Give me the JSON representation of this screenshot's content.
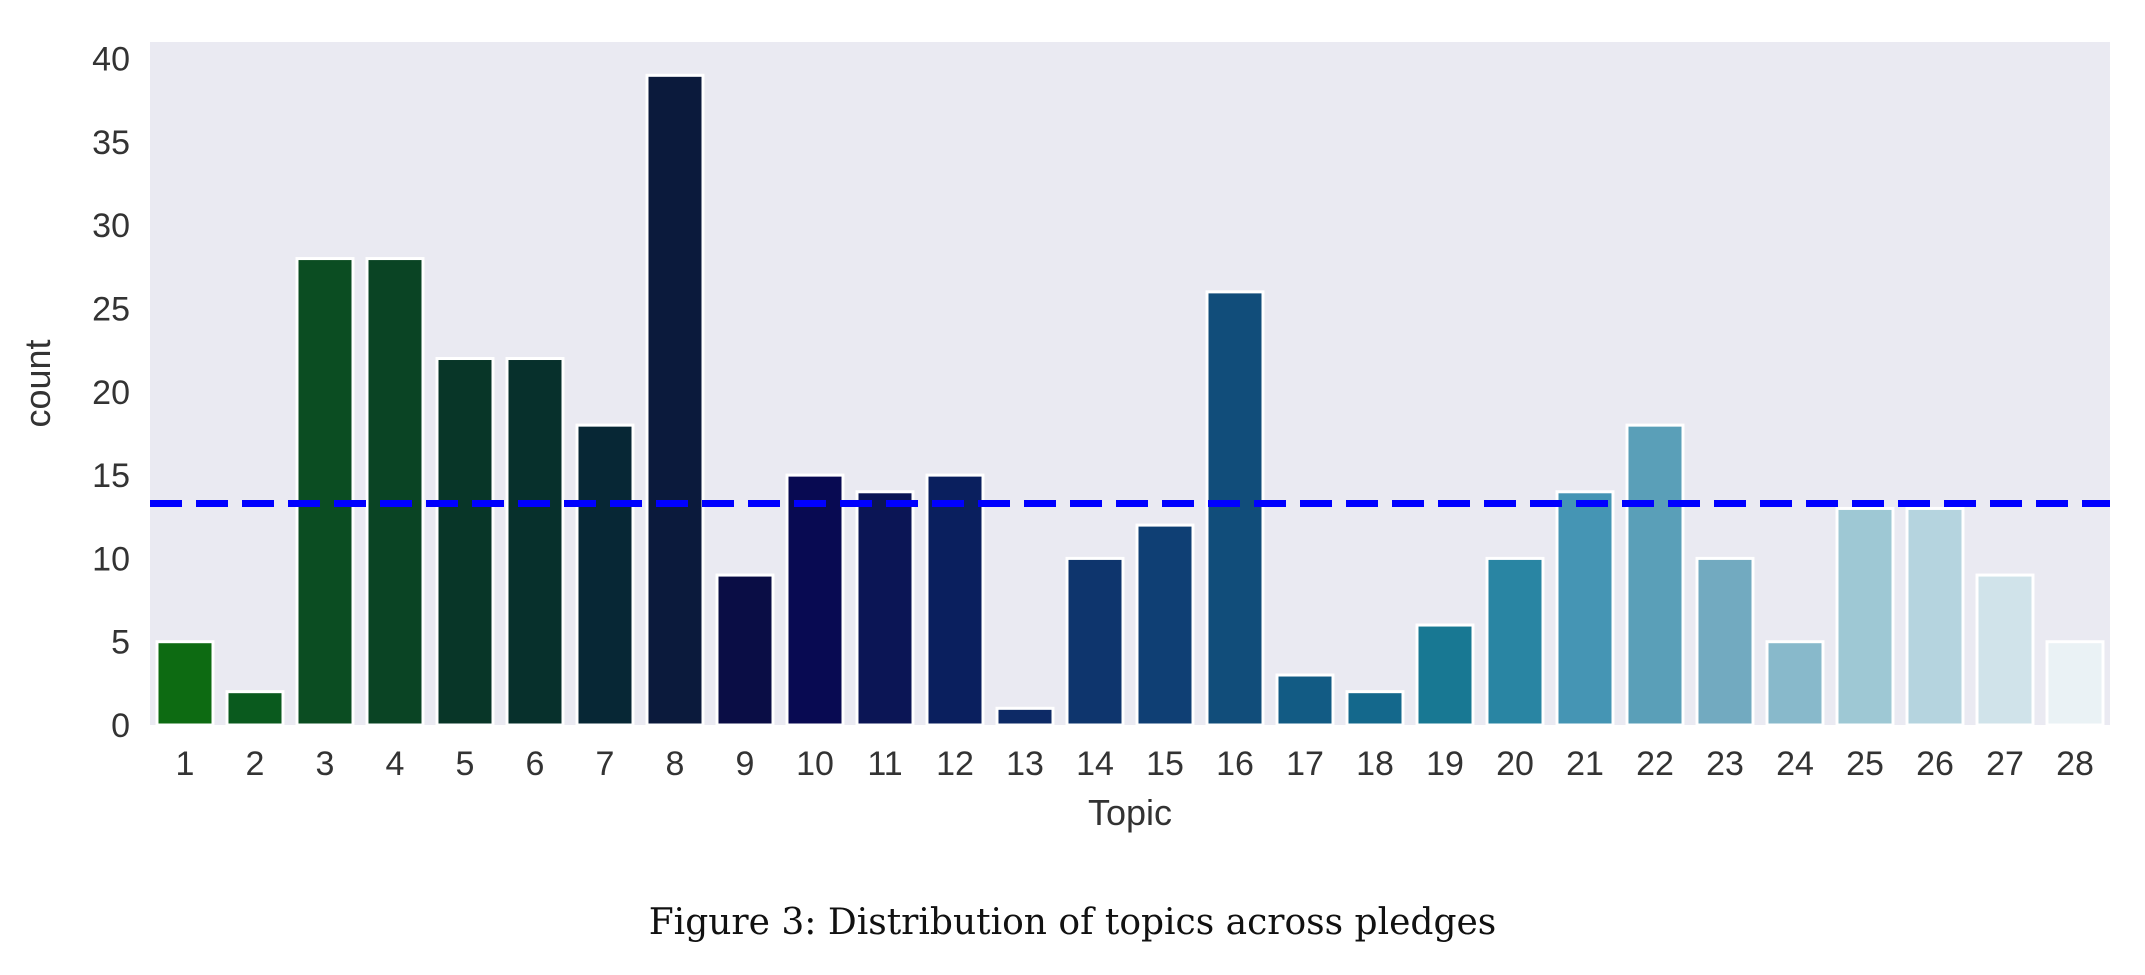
{
  "chart_data": {
    "type": "bar",
    "categories": [
      "1",
      "2",
      "3",
      "4",
      "5",
      "6",
      "7",
      "8",
      "9",
      "10",
      "11",
      "12",
      "13",
      "14",
      "15",
      "16",
      "17",
      "18",
      "19",
      "20",
      "21",
      "22",
      "23",
      "24",
      "25",
      "26",
      "27",
      "28"
    ],
    "values": [
      5,
      2,
      28,
      28,
      22,
      22,
      18,
      39,
      9,
      15,
      14,
      15,
      1,
      10,
      12,
      26,
      3,
      2,
      6,
      10,
      14,
      18,
      10,
      5,
      13,
      13,
      9,
      5
    ],
    "colors": [
      "#0d6b12",
      "#0a5a1e",
      "#0b4d22",
      "#0a4424",
      "#083628",
      "#07302c",
      "#072735",
      "#0b1a3c",
      "#0a0d45",
      "#080a52",
      "#0b1555",
      "#0a1f5e",
      "#0d2a66",
      "#0e356d",
      "#0f3f74",
      "#114d7a",
      "#125b84",
      "#14688c",
      "#187893",
      "#2985a3",
      "#4595b4",
      "#5a9fb8",
      "#72aac0",
      "#88b9cb",
      "#9ec8d4",
      "#b5d4df",
      "#d0e3ea",
      "#eaf2f5"
    ],
    "mean_line": {
      "value": 13.3,
      "color": "#0000ff",
      "style": "dashed"
    },
    "xlabel": "Topic",
    "ylabel": "count",
    "ylim": [
      0,
      41
    ],
    "yticks": [
      0,
      5,
      10,
      15,
      20,
      25,
      30,
      35,
      40
    ],
    "grid": false,
    "background": "#eaeaf2",
    "caption": "Figure 3: Distribution of topics across pledges"
  }
}
